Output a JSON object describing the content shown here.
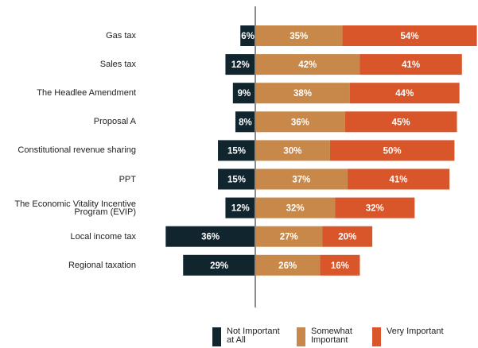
{
  "chart_data": {
    "type": "diverging_bar",
    "categories": [
      "Gas tax",
      "Sales tax",
      "The Headlee Amendment",
      "Proposal A",
      "Constitutional revenue sharing",
      "PPT",
      "The Economic Vitality Incentive Program (EVIP)",
      "Local income tax",
      "Regional taxation"
    ],
    "series": [
      {
        "name": "Not Important at All",
        "color": "#10252e",
        "direction": "left",
        "values": [
          6,
          12,
          9,
          8,
          15,
          15,
          12,
          36,
          29
        ],
        "value_labels": [
          "6%",
          "12%",
          "9%",
          "8%",
          "15%",
          "15%",
          "12%",
          "36%",
          "29%"
        ]
      },
      {
        "name": "Somewhat Important",
        "color": "#c8884a",
        "direction": "right",
        "values": [
          35,
          42,
          38,
          36,
          30,
          37,
          32,
          27,
          26
        ],
        "value_labels": [
          "35%",
          "42%",
          "38%",
          "36%",
          "30%",
          "37%",
          "32%",
          "27%",
          "26%"
        ]
      },
      {
        "name": "Very Important",
        "color": "#d9552a",
        "direction": "right",
        "values": [
          54,
          41,
          44,
          45,
          50,
          41,
          32,
          20,
          16
        ],
        "value_labels": [
          "54%",
          "41%",
          "44%",
          "45%",
          "50%",
          "41%",
          "32%",
          "20%",
          "16%"
        ]
      }
    ]
  }
}
